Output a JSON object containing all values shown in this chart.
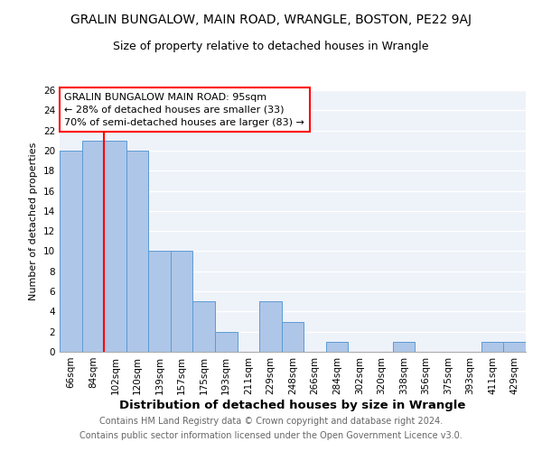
{
  "title": "GRALIN BUNGALOW, MAIN ROAD, WRANGLE, BOSTON, PE22 9AJ",
  "subtitle": "Size of property relative to detached houses in Wrangle",
  "xlabel": "Distribution of detached houses by size in Wrangle",
  "ylabel": "Number of detached properties",
  "categories": [
    "66sqm",
    "84sqm",
    "102sqm",
    "120sqm",
    "139sqm",
    "157sqm",
    "175sqm",
    "193sqm",
    "211sqm",
    "229sqm",
    "248sqm",
    "266sqm",
    "284sqm",
    "302sqm",
    "320sqm",
    "338sqm",
    "356sqm",
    "375sqm",
    "393sqm",
    "411sqm",
    "429sqm"
  ],
  "values": [
    20,
    21,
    21,
    20,
    10,
    10,
    5,
    2,
    0,
    5,
    3,
    0,
    1,
    0,
    0,
    1,
    0,
    0,
    0,
    1,
    1
  ],
  "bar_color": "#aec6e8",
  "bar_edge_color": "#5b9bd5",
  "red_line_index": 2,
  "annotation_text": "GRALIN BUNGALOW MAIN ROAD: 95sqm\n← 28% of detached houses are smaller (33)\n70% of semi-detached houses are larger (83) →",
  "footer_line1": "Contains HM Land Registry data © Crown copyright and database right 2024.",
  "footer_line2": "Contains public sector information licensed under the Open Government Licence v3.0.",
  "ylim": [
    0,
    26
  ],
  "yticks": [
    0,
    2,
    4,
    6,
    8,
    10,
    12,
    14,
    16,
    18,
    20,
    22,
    24,
    26
  ],
  "background_color": "#eef2f9",
  "grid_color": "white",
  "title_fontsize": 10,
  "subtitle_fontsize": 9,
  "xlabel_fontsize": 9.5,
  "ylabel_fontsize": 8,
  "tick_fontsize": 7.5,
  "annotation_fontsize": 8,
  "footer_fontsize": 7
}
